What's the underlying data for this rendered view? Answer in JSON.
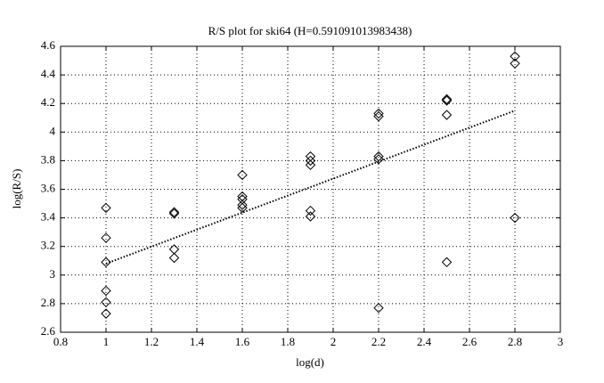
{
  "chart_data": {
    "type": "scatter",
    "title": "R/S plot for ski64 (H=0.591091013983438)",
    "xlabel": "log(d)",
    "ylabel": "log(R/S)",
    "xlim": [
      0.8,
      3
    ],
    "xticks": [
      0.8,
      1,
      1.2,
      1.4,
      1.6,
      1.8,
      2,
      2.2,
      2.4,
      2.6,
      2.8,
      3
    ],
    "ylim": [
      2.6,
      4.6
    ],
    "yticks": [
      2.6,
      2.8,
      3,
      3.2,
      3.4,
      3.6,
      3.8,
      4,
      4.2,
      4.4,
      4.6
    ],
    "grid": true,
    "color": "#000000",
    "points": {
      "x": [
        1,
        1,
        1,
        1,
        1,
        1,
        1.3,
        1.3,
        1.3,
        1.3,
        1.6,
        1.6,
        1.6,
        1.6,
        1.6,
        1.9,
        1.9,
        1.9,
        1.9,
        1.9,
        2.2,
        2.2,
        2.2,
        2.2,
        2.2,
        2.5,
        2.5,
        2.5,
        2.5,
        2.8,
        2.8,
        2.8
      ],
      "values": [
        3.47,
        3.26,
        3.09,
        2.89,
        2.81,
        2.73,
        3.44,
        3.43,
        3.18,
        3.12,
        3.7,
        3.55,
        3.53,
        3.49,
        3.47,
        3.83,
        3.8,
        3.77,
        3.45,
        3.41,
        4.13,
        4.11,
        3.83,
        3.81,
        2.77,
        4.23,
        4.22,
        4.12,
        3.09,
        4.53,
        4.48,
        3.4
      ]
    },
    "fit": {
      "x": [
        1,
        2.8
      ],
      "values": [
        3.08,
        4.15
      ]
    }
  }
}
